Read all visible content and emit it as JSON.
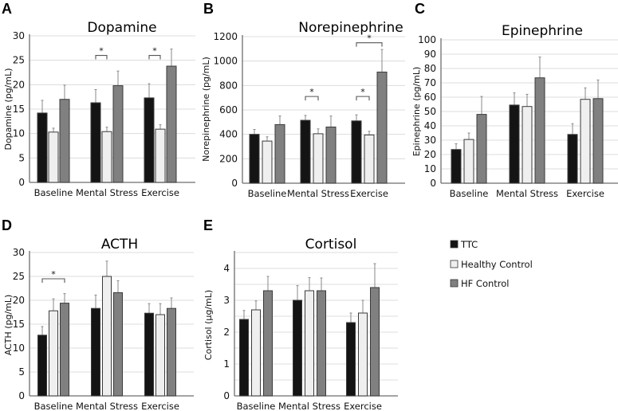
{
  "figure": {
    "legend": {
      "placement": "right",
      "items": [
        {
          "label": "TTC",
          "color": "#141414"
        },
        {
          "label": "Healthy Control",
          "color": "#efefef"
        },
        {
          "label": "HF Control",
          "color": "#808080"
        }
      ]
    }
  },
  "chart_data": [
    {
      "panel": "A",
      "type": "bar",
      "title": "Dopamine",
      "xlabel": "",
      "ylabel": "Dopamine (pg/mL)",
      "ylim": [
        0,
        30
      ],
      "yticks": [
        0,
        5,
        10,
        15,
        20,
        25,
        30
      ],
      "ytick_labels": [
        "0",
        "5",
        "10",
        "15",
        "20",
        "25",
        "30"
      ],
      "gridlines": [
        5,
        10,
        15,
        20,
        25,
        30
      ],
      "grid": true,
      "categories": [
        "Baseline",
        "Mental Stress",
        "Exercise"
      ],
      "series": [
        {
          "name": "TTC",
          "values": [
            14.2,
            16.3,
            17.3
          ],
          "error_upper": [
            16.8,
            19.0,
            20.2
          ]
        },
        {
          "name": "Healthy Control",
          "values": [
            10.3,
            10.4,
            10.9
          ],
          "error_upper": [
            11.1,
            11.3,
            11.8
          ]
        },
        {
          "name": "HF Control",
          "values": [
            17.0,
            19.8,
            23.8
          ],
          "error_upper": [
            19.9,
            22.8,
            27.3
          ]
        }
      ],
      "significance": [
        {
          "category": 1,
          "from": 0,
          "to": 1,
          "y": 26,
          "label": "*"
        },
        {
          "category": 2,
          "from": 0,
          "to": 1,
          "y": 26,
          "label": "*"
        }
      ]
    },
    {
      "panel": "B",
      "type": "bar",
      "title": "Norepinephrine",
      "xlabel": "",
      "ylabel": "Norepinephrine (pg/mL)",
      "ylim": [
        0,
        1200
      ],
      "yticks": [
        0,
        200,
        400,
        600,
        800,
        1000,
        1200
      ],
      "ytick_labels": [
        "0",
        "200",
        "400",
        "600",
        "800",
        "1000",
        "1200"
      ],
      "gridlines": [
        200,
        400,
        600,
        800,
        1000,
        1200
      ],
      "grid": true,
      "categories": [
        "Baseline",
        "Mental Stress",
        "Exercise"
      ],
      "series": [
        {
          "name": "TTC",
          "values": [
            400,
            515,
            510
          ],
          "error_upper": [
            440,
            555,
            560
          ]
        },
        {
          "name": "Healthy Control",
          "values": [
            345,
            405,
            395
          ],
          "error_upper": [
            380,
            445,
            425
          ]
        },
        {
          "name": "HF Control",
          "values": [
            480,
            460,
            910
          ],
          "error_upper": [
            550,
            550,
            1095
          ]
        }
      ],
      "significance": [
        {
          "category": 1,
          "from": 0,
          "to": 1,
          "y": 710,
          "label": "*"
        },
        {
          "category": 2,
          "from": 0,
          "to": 1,
          "y": 710,
          "label": "*"
        },
        {
          "category": 2,
          "from": 0,
          "to": 2,
          "y": 1150,
          "label": "*"
        }
      ]
    },
    {
      "panel": "C",
      "type": "bar",
      "title": "Epinephrine",
      "xlabel": "",
      "ylabel": "Epinephrine (pg/mL)",
      "ylim": [
        0,
        100
      ],
      "yticks": [
        0,
        10,
        20,
        30,
        40,
        50,
        60,
        70,
        80,
        90,
        100
      ],
      "ytick_labels": [
        "0",
        "10",
        "20",
        "30",
        "40",
        "50",
        "60",
        "70",
        "80",
        "90",
        "100"
      ],
      "gridlines": [
        10,
        20,
        30,
        40,
        50,
        60,
        70,
        80,
        90,
        100
      ],
      "grid": true,
      "categories": [
        "Baseline",
        "Mental Stress",
        "Exercise"
      ],
      "series": [
        {
          "name": "TTC",
          "values": [
            23.5,
            54.5,
            34.0
          ],
          "error_upper": [
            27.5,
            63.0,
            41.5
          ]
        },
        {
          "name": "Healthy Control",
          "values": [
            30.5,
            53.5,
            58.5
          ],
          "error_upper": [
            35.0,
            62.0,
            66.5
          ]
        },
        {
          "name": "HF Control",
          "values": [
            48.0,
            73.5,
            59.0
          ],
          "error_upper": [
            60.5,
            88.0,
            72.0
          ]
        }
      ],
      "significance": []
    },
    {
      "panel": "D",
      "type": "bar",
      "title": "ACTH",
      "xlabel": "",
      "ylabel": "ACTH (pg/mL)",
      "ylim": [
        0,
        30
      ],
      "yticks": [
        0,
        5,
        10,
        15,
        20,
        25,
        30
      ],
      "ytick_labels": [
        "0",
        "5",
        "10",
        "15",
        "20",
        "25",
        "30"
      ],
      "gridlines": [
        5,
        10,
        15,
        20,
        25,
        30
      ],
      "grid": true,
      "categories": [
        "Baseline",
        "Mental Stress",
        "Exercise"
      ],
      "series": [
        {
          "name": "TTC",
          "values": [
            12.7,
            18.3,
            17.3
          ],
          "error_upper": [
            14.5,
            21.1,
            19.3
          ]
        },
        {
          "name": "Healthy Control",
          "values": [
            17.8,
            25.0,
            17.0
          ],
          "error_upper": [
            20.3,
            28.2,
            19.3
          ]
        },
        {
          "name": "HF Control",
          "values": [
            19.4,
            21.6,
            18.3
          ],
          "error_upper": [
            21.4,
            24.1,
            20.5
          ]
        }
      ],
      "significance": [
        {
          "category": 0,
          "from": 0,
          "to": 2,
          "y": 24.5,
          "label": "*"
        }
      ]
    },
    {
      "panel": "E",
      "type": "bar",
      "title": "Cortisol",
      "xlabel": "",
      "ylabel": "Cortisol (µg/mL)",
      "ylim": [
        0,
        4.5
      ],
      "yticks": [
        0,
        1,
        2,
        3,
        4
      ],
      "ytick_labels": [
        "0",
        "1",
        "2",
        "3",
        "4"
      ],
      "gridlines": [
        0.5,
        1,
        1.5,
        2,
        2.5,
        3,
        3.5,
        4,
        4.5
      ],
      "grid": true,
      "categories": [
        "Baseline",
        "Mental Stress",
        "Exercise"
      ],
      "series": [
        {
          "name": "TTC",
          "values": [
            2.4,
            3.0,
            2.3
          ],
          "error_upper": [
            2.68,
            3.46,
            2.6
          ]
        },
        {
          "name": "Healthy Control",
          "values": [
            2.7,
            3.3,
            2.6
          ],
          "error_upper": [
            2.98,
            3.71,
            3.0
          ]
        },
        {
          "name": "HF Control",
          "values": [
            3.3,
            3.3,
            3.4
          ],
          "error_upper": [
            3.75,
            3.7,
            4.15
          ]
        }
      ],
      "significance": []
    }
  ]
}
